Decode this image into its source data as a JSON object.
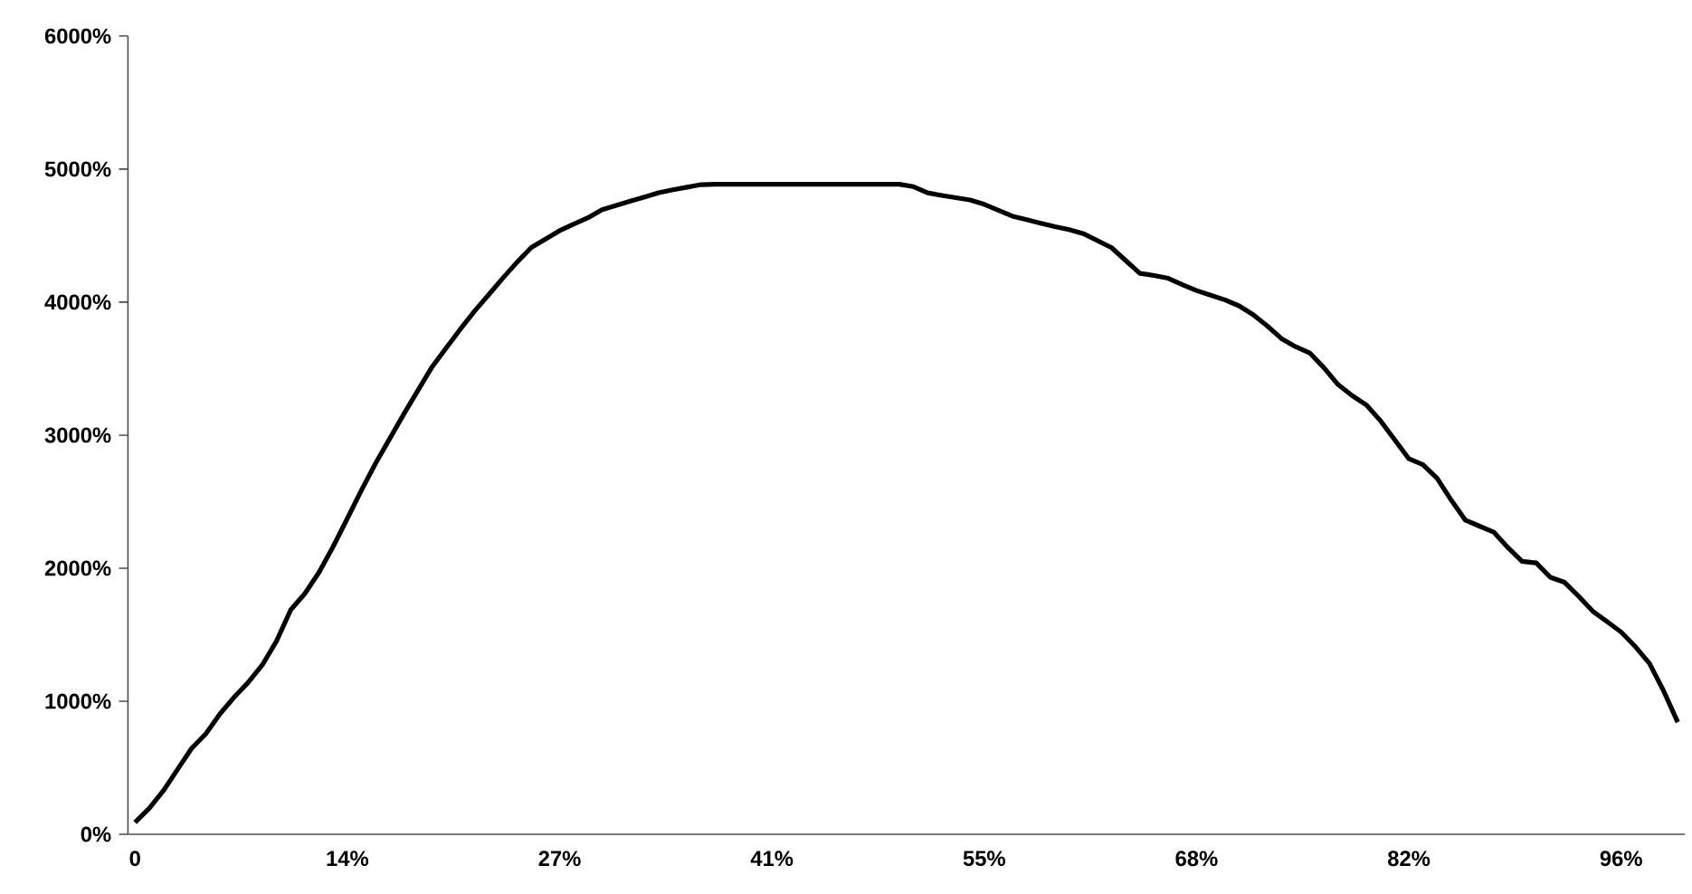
{
  "chart_data": {
    "type": "line",
    "categories": [
      "0",
      null,
      null,
      null,
      null,
      null,
      null,
      null,
      null,
      null,
      null,
      null,
      null,
      null,
      null,
      "14%",
      null,
      null,
      null,
      null,
      null,
      null,
      null,
      null,
      null,
      null,
      null,
      null,
      null,
      null,
      "27%",
      null,
      null,
      null,
      null,
      null,
      null,
      null,
      null,
      null,
      null,
      null,
      null,
      null,
      null,
      "41%",
      null,
      null,
      null,
      null,
      null,
      null,
      null,
      null,
      null,
      null,
      null,
      null,
      null,
      null,
      "55%",
      null,
      null,
      null,
      null,
      null,
      null,
      null,
      null,
      null,
      null,
      null,
      null,
      null,
      null,
      "68%",
      null,
      null,
      null,
      null,
      null,
      null,
      null,
      null,
      null,
      null,
      null,
      null,
      null,
      null,
      "82%",
      null,
      null,
      null,
      null,
      null,
      null,
      null,
      null,
      null,
      null,
      null,
      null,
      null,
      null,
      "96%",
      null,
      null,
      null,
      null
    ],
    "series": [
      {
        "color": "#000000",
        "values": [
          90,
          195,
          327,
          487,
          646,
          755,
          905,
          1030,
          1142,
          1274,
          1453,
          1687,
          1809,
          1969,
          2163,
          2374,
          2587,
          2789,
          2975,
          3160,
          3339,
          3515,
          3658,
          3799,
          3934,
          4057,
          4182,
          4301,
          4411,
          4474,
          4537,
          4587,
          4634,
          4695,
          4727,
          4759,
          4790,
          4822,
          4844,
          4864,
          4883,
          4886,
          4886,
          4886,
          4886,
          4886,
          4886,
          4886,
          4886,
          4886,
          4886,
          4886,
          4886,
          4886,
          4886,
          4868,
          4821,
          4802,
          4785,
          4768,
          4735,
          4690,
          4646,
          4620,
          4593,
          4567,
          4545,
          4515,
          4462,
          4409,
          4312,
          4216,
          4200,
          4179,
          4131,
          4087,
          4052,
          4017,
          3972,
          3906,
          3821,
          3726,
          3665,
          3618,
          3507,
          3380,
          3297,
          3227,
          3108,
          2965,
          2823,
          2778,
          2675,
          2511,
          2361,
          2316,
          2271,
          2155,
          2052,
          2040,
          1932,
          1894,
          1789,
          1676,
          1599,
          1520,
          1411,
          1285,
          1078,
          843
        ]
      }
    ],
    "ylim": [
      0,
      6000
    ],
    "yticks": [
      {
        "value": 0,
        "label": "0%"
      },
      {
        "value": 1000,
        "label": "1000%"
      },
      {
        "value": 2000,
        "label": "2000%"
      },
      {
        "value": 3000,
        "label": "3000%"
      },
      {
        "value": 4000,
        "label": "4000%"
      },
      {
        "value": 5000,
        "label": "5000%"
      },
      {
        "value": 6000,
        "label": "6000%"
      }
    ],
    "grid": false,
    "marker": "none",
    "line_style": "solid"
  }
}
